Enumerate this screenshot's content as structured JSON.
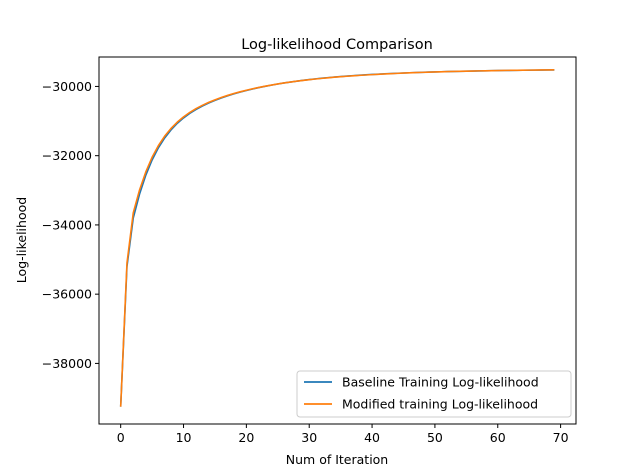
{
  "chart_data": {
    "type": "line",
    "title": "Log-likelihood Comparison",
    "xlabel": "Num of Iteration",
    "ylabel": "Log-likelihood",
    "xlim": [
      -3.45,
      72.45
    ],
    "ylim": [
      -39750,
      -29150
    ],
    "xticks": [
      0,
      10,
      20,
      30,
      40,
      50,
      60,
      70
    ],
    "yticks": [
      -38000,
      -36000,
      -34000,
      -32000,
      -30000
    ],
    "grid": false,
    "legend_position": "lower-right",
    "x": [
      0,
      1,
      2,
      3,
      4,
      5,
      6,
      7,
      8,
      9,
      10,
      11,
      12,
      13,
      14,
      15,
      16,
      17,
      18,
      19,
      20,
      21,
      22,
      23,
      24,
      25,
      26,
      27,
      28,
      29,
      30,
      31,
      32,
      33,
      34,
      35,
      36,
      37,
      38,
      39,
      40,
      41,
      42,
      43,
      44,
      45,
      46,
      47,
      48,
      49,
      50,
      51,
      52,
      53,
      54,
      55,
      56,
      57,
      58,
      59,
      60,
      61,
      62,
      63,
      64,
      65,
      66,
      67,
      68,
      69
    ],
    "series": [
      {
        "name": "Baseline Training Log-likelihood",
        "color": "#1f77b4",
        "values": [
          -39250,
          -35200,
          -33800,
          -33111,
          -32563,
          -32124,
          -31772,
          -31488,
          -31257,
          -31067,
          -30910,
          -30777,
          -30664,
          -30566,
          -30480,
          -30403,
          -30334,
          -30272,
          -30216,
          -30164,
          -30117,
          -30074,
          -30033,
          -29996,
          -29962,
          -29930,
          -29900,
          -29873,
          -29848,
          -29824,
          -29802,
          -29782,
          -29763,
          -29746,
          -29730,
          -29715,
          -29701,
          -29688,
          -29676,
          -29665,
          -29654,
          -29645,
          -29636,
          -29627,
          -29619,
          -29612,
          -29605,
          -29598,
          -29592,
          -29586,
          -29581,
          -29576,
          -29571,
          -29567,
          -29563,
          -29559,
          -29555,
          -29552,
          -29549,
          -29546,
          -29543,
          -29540,
          -29538,
          -29535,
          -29533,
          -29531,
          -29529,
          -29527,
          -29525,
          -29523
        ]
      },
      {
        "name": "Modified training Log-likelihood",
        "color": "#ff7f0e",
        "values": [
          -39250,
          -35100,
          -33650,
          -32990,
          -32467,
          -32047,
          -31710,
          -31437,
          -31214,
          -31031,
          -30879,
          -30750,
          -30640,
          -30545,
          -30461,
          -30387,
          -30320,
          -30260,
          -30205,
          -30155,
          -30110,
          -30068,
          -30029,
          -29993,
          -29960,
          -29929,
          -29900,
          -29874,
          -29849,
          -29826,
          -29805,
          -29785,
          -29767,
          -29750,
          -29734,
          -29720,
          -29706,
          -29693,
          -29681,
          -29670,
          -29659,
          -29649,
          -29640,
          -29631,
          -29623,
          -29615,
          -29608,
          -29601,
          -29594,
          -29588,
          -29582,
          -29577,
          -29572,
          -29567,
          -29563,
          -29559,
          -29555,
          -29551,
          -29548,
          -29545,
          -29542,
          -29539,
          -29536,
          -29534,
          -29532,
          -29529,
          -29527,
          -29525,
          -29523,
          -29521
        ]
      }
    ]
  }
}
